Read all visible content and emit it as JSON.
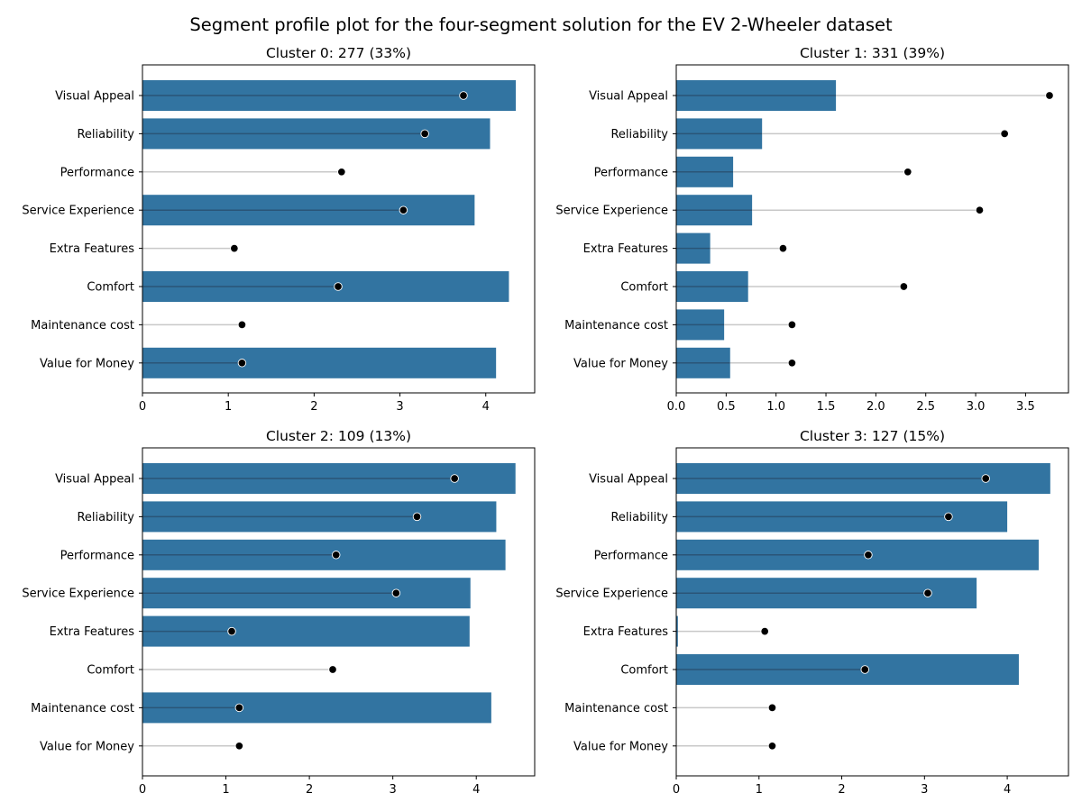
{
  "figure_title": "Segment profile plot for the four-segment solution for the EV 2-Wheeler dataset",
  "colors": {
    "bar": "#3274a1",
    "marker": "#000000",
    "stem": "#c8c8c8",
    "stem_on_bar": "#2a5577"
  },
  "chart_data": [
    {
      "type": "bar",
      "orientation": "horizontal",
      "title": "Cluster 0: 277 (33%)",
      "categories": [
        "Visual Appeal",
        "Reliability",
        "Performance",
        "Service Experience",
        "Extra Features",
        "Comfort",
        "Maintenance cost",
        "Value for Money"
      ],
      "values": [
        4.35,
        4.05,
        0.0,
        3.87,
        0.0,
        4.27,
        0.0,
        4.12
      ],
      "markers": [
        3.74,
        3.29,
        2.32,
        3.04,
        1.07,
        2.28,
        1.16,
        1.16
      ],
      "xlim": [
        0,
        4.57
      ],
      "xticks": [
        "0",
        "1",
        "2",
        "3",
        "4"
      ],
      "grid": false
    },
    {
      "type": "bar",
      "orientation": "horizontal",
      "title": "Cluster 1: 331 (39%)",
      "categories": [
        "Visual Appeal",
        "Reliability",
        "Performance",
        "Service Experience",
        "Extra Features",
        "Comfort",
        "Maintenance cost",
        "Value for Money"
      ],
      "values": [
        1.6,
        0.86,
        0.57,
        0.76,
        0.34,
        0.72,
        0.48,
        0.54
      ],
      "markers": [
        3.74,
        3.29,
        2.32,
        3.04,
        1.07,
        2.28,
        1.16,
        1.16
      ],
      "xlim": [
        0,
        3.93
      ],
      "xticks": [
        "0.0",
        "0.5",
        "1.0",
        "1.5",
        "2.0",
        "2.5",
        "3.0",
        "3.5"
      ],
      "grid": false
    },
    {
      "type": "bar",
      "orientation": "horizontal",
      "title": "Cluster 2: 109 (13%)",
      "categories": [
        "Visual Appeal",
        "Reliability",
        "Performance",
        "Service Experience",
        "Extra Features",
        "Comfort",
        "Maintenance cost",
        "Value for Money"
      ],
      "values": [
        4.47,
        4.24,
        4.35,
        3.93,
        3.92,
        0.0,
        4.18,
        0.0
      ],
      "markers": [
        3.74,
        3.29,
        2.32,
        3.04,
        1.07,
        2.28,
        1.16,
        1.16
      ],
      "xlim": [
        0,
        4.7
      ],
      "xticks": [
        "0",
        "1",
        "2",
        "3",
        "4"
      ],
      "grid": false
    },
    {
      "type": "bar",
      "orientation": "horizontal",
      "title": "Cluster 3: 127 (15%)",
      "categories": [
        "Visual Appeal",
        "Reliability",
        "Performance",
        "Service Experience",
        "Extra Features",
        "Comfort",
        "Maintenance cost",
        "Value for Money"
      ],
      "values": [
        4.52,
        4.0,
        4.38,
        3.63,
        0.02,
        4.14,
        0.0,
        0.0
      ],
      "markers": [
        3.74,
        3.29,
        2.32,
        3.04,
        1.07,
        2.28,
        1.16,
        1.16
      ],
      "xlim": [
        0,
        4.74
      ],
      "xticks": [
        "0",
        "1",
        "2",
        "3",
        "4"
      ],
      "grid": false
    }
  ]
}
